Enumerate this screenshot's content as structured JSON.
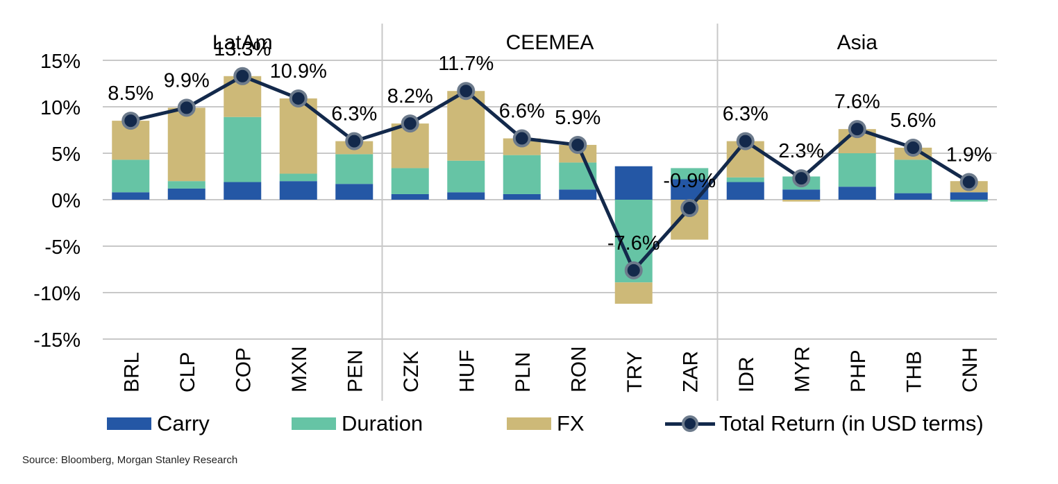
{
  "colors": {
    "carry": "#2457A5",
    "duration": "#66C4A5",
    "fx": "#CDB978",
    "total": "#13294B",
    "grid": "#C8C8C8"
  },
  "chart_data": {
    "type": "bar",
    "stacked": true,
    "groups": [
      {
        "name": "LatAm",
        "categories": [
          "BRL",
          "CLP",
          "COP",
          "MXN",
          "PEN"
        ]
      },
      {
        "name": "CEEMEA",
        "categories": [
          "CZK",
          "HUF",
          "PLN",
          "RON",
          "TRY",
          "ZAR"
        ]
      },
      {
        "name": "Asia",
        "categories": [
          "IDR",
          "MYR",
          "PHP",
          "THB",
          "CNH"
        ]
      }
    ],
    "categories": [
      "BRL",
      "CLP",
      "COP",
      "MXN",
      "PEN",
      "CZK",
      "HUF",
      "PLN",
      "RON",
      "TRY",
      "ZAR",
      "IDR",
      "MYR",
      "PHP",
      "THB",
      "CNH"
    ],
    "series": [
      {
        "name": "Carry",
        "kind": "bar",
        "values": [
          0.8,
          1.2,
          1.9,
          2.0,
          1.7,
          0.6,
          0.8,
          0.6,
          1.1,
          3.6,
          2.2,
          1.9,
          1.1,
          1.4,
          0.7,
          0.8
        ]
      },
      {
        "name": "Duration",
        "kind": "bar",
        "values": [
          3.5,
          0.8,
          7.0,
          0.8,
          3.2,
          2.8,
          3.4,
          4.2,
          2.9,
          -8.9,
          1.2,
          0.5,
          1.4,
          3.6,
          3.6,
          -0.2
        ]
      },
      {
        "name": "FX",
        "kind": "bar",
        "values": [
          4.2,
          7.9,
          4.4,
          8.1,
          1.4,
          4.8,
          7.5,
          1.8,
          1.9,
          -2.3,
          -4.3,
          3.9,
          -0.2,
          2.6,
          1.3,
          1.2
        ]
      },
      {
        "name": "Total Return (in USD terms)",
        "kind": "line",
        "values": [
          8.5,
          9.9,
          13.3,
          10.9,
          6.3,
          8.2,
          11.7,
          6.6,
          5.9,
          -7.6,
          -0.9,
          6.3,
          2.3,
          7.6,
          5.6,
          1.9
        ]
      }
    ],
    "data_labels": [
      "8.5%",
      "9.9%",
      "13.3%",
      "10.9%",
      "6.3%",
      "8.2%",
      "11.7%",
      "6.6%",
      "5.9%",
      "-7.6%",
      "-0.9%",
      "6.3%",
      "2.3%",
      "7.6%",
      "5.6%",
      "1.9%"
    ],
    "y_ticks": [
      15,
      10,
      5,
      0,
      -5,
      -10,
      -15
    ],
    "y_tick_labels": [
      "15%",
      "10%",
      "5%",
      "0%",
      "-5%",
      "-10%",
      "-15%"
    ],
    "ylim": [
      -15,
      15
    ],
    "grid": true,
    "legend_position": "bottom"
  },
  "legend": {
    "carry": "Carry",
    "duration": "Duration",
    "fx": "FX",
    "total": "Total Return (in USD terms)"
  },
  "source": "Source: Bloomberg, Morgan Stanley Research"
}
